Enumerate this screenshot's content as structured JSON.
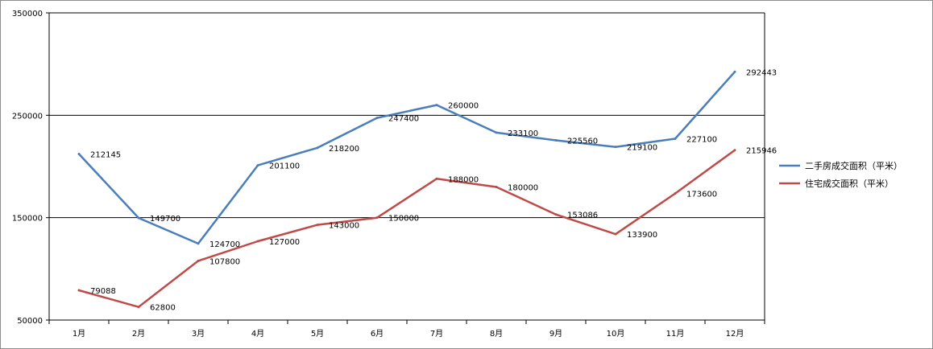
{
  "chart_data": {
    "type": "line",
    "title": "",
    "xlabel": "",
    "ylabel": "",
    "categories": [
      "1月",
      "2月",
      "3月",
      "4月",
      "5月",
      "6月",
      "7月",
      "8月",
      "9月",
      "10月",
      "11月",
      "12月"
    ],
    "ylim": [
      50000,
      350000
    ],
    "yticks": [
      50000,
      150000,
      250000,
      350000
    ],
    "grid": true,
    "legend_position": "right",
    "series": [
      {
        "name": "二手房成交面积（平米）",
        "color": "#4a7ebb",
        "values": [
          212145,
          149700,
          124700,
          201100,
          218200,
          247400,
          260000,
          233100,
          225560,
          219100,
          227100,
          292443
        ]
      },
      {
        "name": "住宅成交面积（平米）",
        "color": "#be4b48",
        "values": [
          79088,
          62800,
          107800,
          127000,
          143000,
          150000,
          188000,
          180000,
          153086,
          133900,
          173600,
          215946
        ]
      }
    ]
  }
}
